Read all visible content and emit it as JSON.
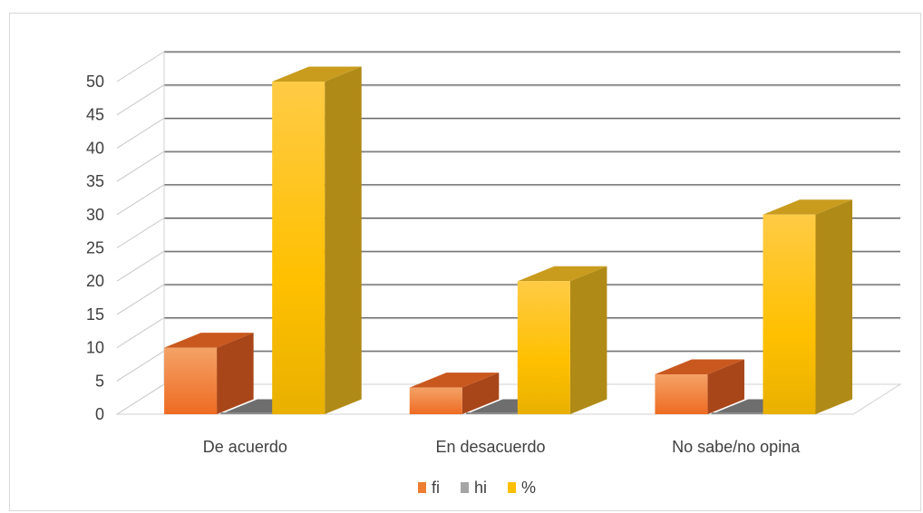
{
  "chart_data": {
    "type": "bar",
    "title": "",
    "xlabel": "",
    "ylabel": "",
    "categories": [
      "De acuerdo",
      "En desacuerdo",
      "No sabe/no opina"
    ],
    "series": [
      {
        "name": "fi",
        "values": [
          10,
          4,
          6
        ],
        "color": "#ED7D31"
      },
      {
        "name": "hi",
        "values": [
          0.5,
          0.2,
          0.3
        ],
        "color": "#A5A5A5"
      },
      {
        "name": "%",
        "values": [
          50,
          20,
          30
        ],
        "color": "#FFC000"
      }
    ],
    "ylim": [
      0,
      50
    ],
    "yticks": [
      0,
      5,
      10,
      15,
      20,
      25,
      30,
      35,
      40,
      45,
      50
    ],
    "grid": true,
    "three_d": true,
    "legend_position": "bottom"
  }
}
